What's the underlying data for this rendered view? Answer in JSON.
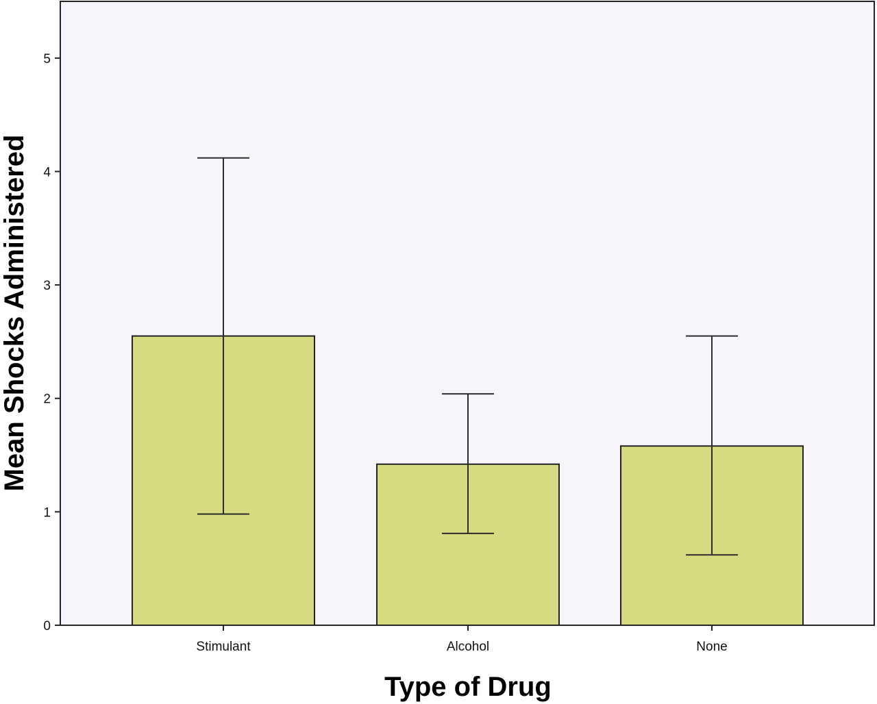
{
  "chart_data": {
    "type": "bar",
    "title": "",
    "xlabel": "Type of Drug",
    "ylabel": "Mean Shocks Administered",
    "categories": [
      "Stimulant",
      "Alcohol",
      "None"
    ],
    "values": [
      2.55,
      1.42,
      1.58
    ],
    "error_bars": {
      "lower": [
        0.98,
        0.81,
        0.62
      ],
      "upper": [
        4.12,
        2.04,
        2.55
      ]
    },
    "ylim": [
      0,
      5.5
    ],
    "yticks": [
      0,
      1,
      2,
      3,
      4,
      5
    ],
    "grid": false,
    "legend": "none",
    "colors": {
      "bar_fill": "#d6db82",
      "bar_stroke": "#222222",
      "plot_background": "#f7f5fb",
      "axis": "#222222"
    }
  }
}
